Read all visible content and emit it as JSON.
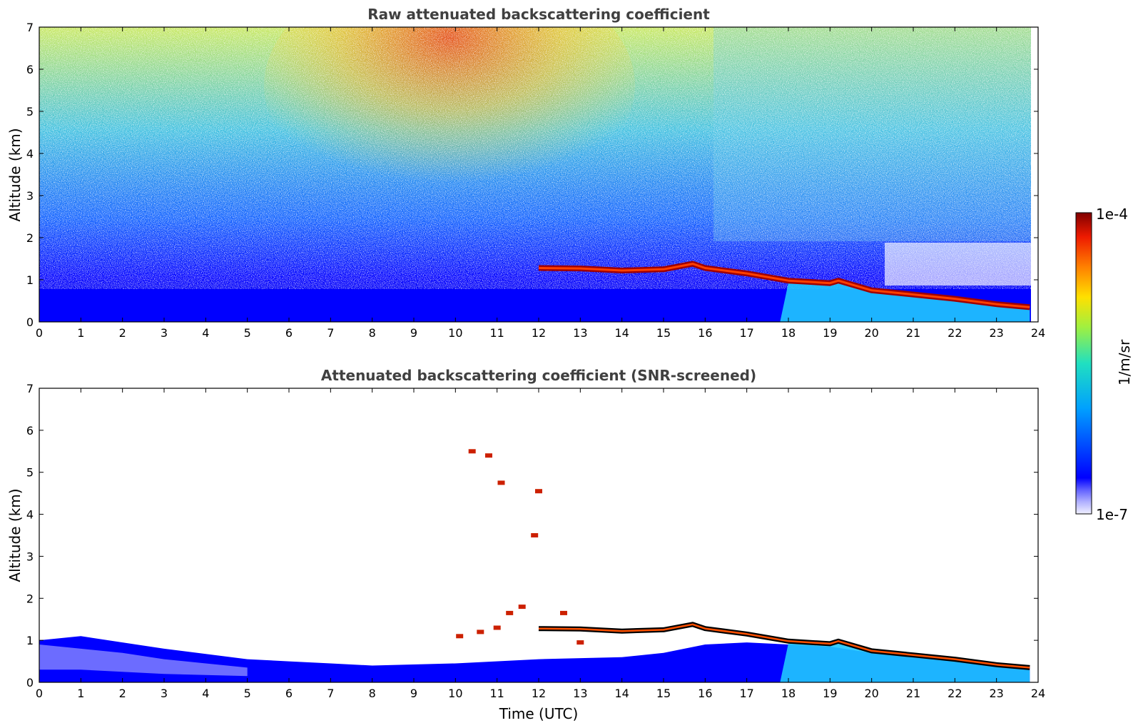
{
  "chart_data": [
    {
      "type": "heatmap",
      "title": "Raw attenuated backscattering coefficient",
      "xlabel": "",
      "ylabel": "Altitude (km)",
      "xlim": [
        0,
        24
      ],
      "ylim": [
        0,
        7
      ],
      "x_ticks": [
        "0",
        "1",
        "2",
        "3",
        "4",
        "5",
        "6",
        "7",
        "8",
        "9",
        "10",
        "11",
        "12",
        "13",
        "14",
        "15",
        "16",
        "17",
        "18",
        "19",
        "20",
        "21",
        "22",
        "23",
        "24"
      ],
      "y_ticks": [
        "0",
        "1",
        "2",
        "3",
        "4",
        "5",
        "6",
        "7"
      ],
      "layer_top_km": [
        {
          "t": 12.0,
          "alt": 1.28
        },
        {
          "t": 13.0,
          "alt": 1.27
        },
        {
          "t": 14.0,
          "alt": 1.22
        },
        {
          "t": 15.0,
          "alt": 1.25
        },
        {
          "t": 15.7,
          "alt": 1.38
        },
        {
          "t": 16.0,
          "alt": 1.28
        },
        {
          "t": 17.0,
          "alt": 1.15
        },
        {
          "t": 18.0,
          "alt": 0.98
        },
        {
          "t": 19.0,
          "alt": 0.92
        },
        {
          "t": 19.2,
          "alt": 0.98
        },
        {
          "t": 20.0,
          "alt": 0.75
        },
        {
          "t": 21.0,
          "alt": 0.65
        },
        {
          "t": 22.0,
          "alt": 0.55
        },
        {
          "t": 23.0,
          "alt": 0.42
        },
        {
          "t": 23.8,
          "alt": 0.35
        }
      ]
    },
    {
      "type": "heatmap",
      "title": "Attenuated backscattering coefficient (SNR-screened)",
      "xlabel": "Time (UTC)",
      "ylabel": "Altitude (km)",
      "xlim": [
        0,
        24
      ],
      "ylim": [
        0,
        7
      ],
      "x_ticks": [
        "0",
        "1",
        "2",
        "3",
        "4",
        "5",
        "6",
        "7",
        "8",
        "9",
        "10",
        "11",
        "12",
        "13",
        "14",
        "15",
        "16",
        "17",
        "18",
        "19",
        "20",
        "21",
        "22",
        "23",
        "24"
      ],
      "y_ticks": [
        "0",
        "1",
        "2",
        "3",
        "4",
        "5",
        "6",
        "7"
      ]
    }
  ],
  "colorbar": {
    "max_label": "1e-4",
    "min_label": "1e-7",
    "unit_label": "1/m/sr",
    "colormap": "jet",
    "scale": "log"
  }
}
